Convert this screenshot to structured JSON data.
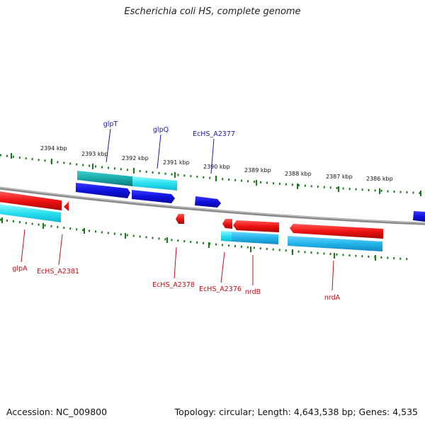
{
  "title": "Escherichia coli HS, complete genome",
  "footer": {
    "accession": "Accession: NC_009800",
    "summary": "Topology: circular; Length: 4,643,538 bp; Genes: 4,535"
  },
  "colors": {
    "backbone": "#888888",
    "tick_marks": "#1a7a1a",
    "forward_gene": "#1010dd",
    "forward_cds": "#22b8b8",
    "reverse_gene": "#ee1111",
    "reverse_cds": "#22c8e8",
    "forward_label": "#1a1aa8",
    "reverse_label": "#c0101a"
  },
  "scale_labels": [
    "2394 kbp",
    "2393 kbp",
    "2392 kbp",
    "2391 kbp",
    "2390 kbp",
    "2389 kbp",
    "2388 kbp",
    "2387 kbp",
    "2386 kbp"
  ],
  "forward_gene_labels": [
    "glpT",
    "glpQ",
    "EcHS_A2377"
  ],
  "reverse_gene_labels": [
    "glpA",
    "EcHS_A2381",
    "EcHS_A2378",
    "EcHS_A2376",
    "nrdB",
    "nrdA"
  ]
}
